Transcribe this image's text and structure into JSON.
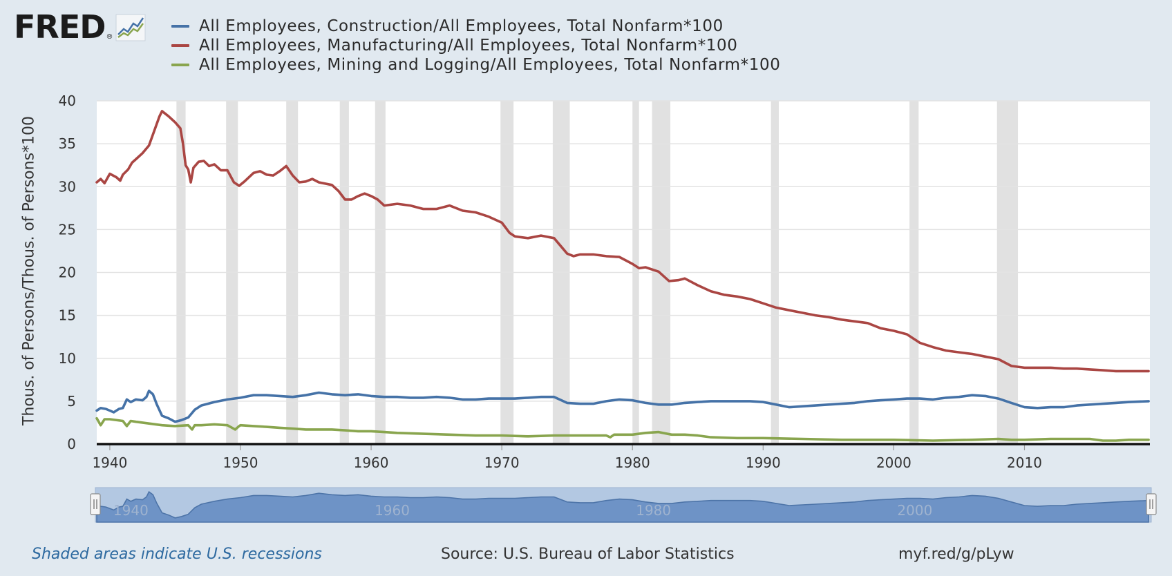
{
  "logo": {
    "text": "FRED",
    "reg": "®",
    "icon": "chart-icon"
  },
  "footer": {
    "note": "Shaded areas indicate U.S. recessions",
    "source": "Source: U.S. Bureau of Labor Statistics",
    "link": "myf.red/g/pLyw"
  },
  "colors": {
    "background": "#e1e9f0",
    "plot_bg": "#ffffff",
    "recession": "#e1e1e1",
    "navigator": "#6e93c6"
  },
  "chart_data": {
    "type": "line",
    "title": "",
    "xlabel": "",
    "ylabel": "Thous. of Persons/Thous. of Persons*100",
    "xlim": [
      1939.0,
      2019.6
    ],
    "ylim": [
      0,
      40
    ],
    "yticks": [
      0,
      5,
      10,
      15,
      20,
      25,
      30,
      35,
      40
    ],
    "xticks": [
      1940,
      1950,
      1960,
      1970,
      1980,
      1990,
      2000,
      2010
    ],
    "grid": true,
    "legend_position": "top",
    "recessions": [
      [
        1945.1,
        1945.8
      ],
      [
        1948.9,
        1949.8
      ],
      [
        1953.5,
        1954.4
      ],
      [
        1957.6,
        1958.3
      ],
      [
        1960.3,
        1961.1
      ],
      [
        1969.9,
        1970.9
      ],
      [
        1973.9,
        1975.2
      ],
      [
        1980.0,
        1980.5
      ],
      [
        1981.5,
        1982.9
      ],
      [
        1990.6,
        1991.2
      ],
      [
        2001.2,
        2001.9
      ],
      [
        2007.9,
        2009.5
      ]
    ],
    "navigator_ticks": [
      1940,
      1960,
      1980,
      2000
    ],
    "series": [
      {
        "name": "All Employees, Construction/All Employees, Total Nonfarm*100",
        "color": "#4572a7",
        "points": [
          [
            1939.0,
            3.9
          ],
          [
            1939.3,
            4.2
          ],
          [
            1939.7,
            4.1
          ],
          [
            1940.0,
            3.9
          ],
          [
            1940.3,
            3.7
          ],
          [
            1940.7,
            4.1
          ],
          [
            1941.0,
            4.2
          ],
          [
            1941.3,
            5.2
          ],
          [
            1941.6,
            4.9
          ],
          [
            1942.0,
            5.2
          ],
          [
            1942.5,
            5.1
          ],
          [
            1942.8,
            5.5
          ],
          [
            1943.0,
            6.2
          ],
          [
            1943.3,
            5.8
          ],
          [
            1943.6,
            4.6
          ],
          [
            1944.0,
            3.3
          ],
          [
            1944.5,
            3.0
          ],
          [
            1945.0,
            2.6
          ],
          [
            1945.5,
            2.8
          ],
          [
            1946.0,
            3.1
          ],
          [
            1946.5,
            4.0
          ],
          [
            1947.0,
            4.5
          ],
          [
            1948.0,
            4.9
          ],
          [
            1949.0,
            5.2
          ],
          [
            1950.0,
            5.4
          ],
          [
            1951.0,
            5.7
          ],
          [
            1952.0,
            5.7
          ],
          [
            1953.0,
            5.6
          ],
          [
            1954.0,
            5.5
          ],
          [
            1955.0,
            5.7
          ],
          [
            1956.0,
            6.0
          ],
          [
            1957.0,
            5.8
          ],
          [
            1958.0,
            5.7
          ],
          [
            1959.0,
            5.8
          ],
          [
            1960.0,
            5.6
          ],
          [
            1961.0,
            5.5
          ],
          [
            1962.0,
            5.5
          ],
          [
            1963.0,
            5.4
          ],
          [
            1964.0,
            5.4
          ],
          [
            1965.0,
            5.5
          ],
          [
            1966.0,
            5.4
          ],
          [
            1967.0,
            5.2
          ],
          [
            1968.0,
            5.2
          ],
          [
            1969.0,
            5.3
          ],
          [
            1970.0,
            5.3
          ],
          [
            1971.0,
            5.3
          ],
          [
            1972.0,
            5.4
          ],
          [
            1973.0,
            5.5
          ],
          [
            1974.0,
            5.5
          ],
          [
            1975.0,
            4.8
          ],
          [
            1976.0,
            4.7
          ],
          [
            1977.0,
            4.7
          ],
          [
            1978.0,
            5.0
          ],
          [
            1979.0,
            5.2
          ],
          [
            1980.0,
            5.1
          ],
          [
            1981.0,
            4.8
          ],
          [
            1982.0,
            4.6
          ],
          [
            1983.0,
            4.6
          ],
          [
            1984.0,
            4.8
          ],
          [
            1985.0,
            4.9
          ],
          [
            1986.0,
            5.0
          ],
          [
            1987.0,
            5.0
          ],
          [
            1988.0,
            5.0
          ],
          [
            1989.0,
            5.0
          ],
          [
            1990.0,
            4.9
          ],
          [
            1991.0,
            4.6
          ],
          [
            1992.0,
            4.3
          ],
          [
            1993.0,
            4.4
          ],
          [
            1994.0,
            4.5
          ],
          [
            1995.0,
            4.6
          ],
          [
            1996.0,
            4.7
          ],
          [
            1997.0,
            4.8
          ],
          [
            1998.0,
            5.0
          ],
          [
            1999.0,
            5.1
          ],
          [
            2000.0,
            5.2
          ],
          [
            2001.0,
            5.3
          ],
          [
            2002.0,
            5.3
          ],
          [
            2003.0,
            5.2
          ],
          [
            2004.0,
            5.4
          ],
          [
            2005.0,
            5.5
          ],
          [
            2006.0,
            5.7
          ],
          [
            2007.0,
            5.6
          ],
          [
            2008.0,
            5.3
          ],
          [
            2009.0,
            4.8
          ],
          [
            2010.0,
            4.3
          ],
          [
            2011.0,
            4.2
          ],
          [
            2012.0,
            4.3
          ],
          [
            2013.0,
            4.3
          ],
          [
            2014.0,
            4.5
          ],
          [
            2015.0,
            4.6
          ],
          [
            2016.0,
            4.7
          ],
          [
            2017.0,
            4.8
          ],
          [
            2018.0,
            4.9
          ],
          [
            2019.5,
            5.0
          ]
        ]
      },
      {
        "name": "All Employees, Manufacturing/All Employees, Total Nonfarm*100",
        "color": "#aa4643",
        "points": [
          [
            1939.0,
            30.5
          ],
          [
            1939.3,
            30.9
          ],
          [
            1939.6,
            30.4
          ],
          [
            1940.0,
            31.5
          ],
          [
            1940.5,
            31.1
          ],
          [
            1940.8,
            30.7
          ],
          [
            1941.0,
            31.4
          ],
          [
            1941.4,
            32.0
          ],
          [
            1941.7,
            32.8
          ],
          [
            1942.0,
            33.2
          ],
          [
            1942.5,
            33.9
          ],
          [
            1943.0,
            34.8
          ],
          [
            1943.4,
            36.5
          ],
          [
            1943.8,
            38.2
          ],
          [
            1944.0,
            38.8
          ],
          [
            1944.5,
            38.2
          ],
          [
            1945.0,
            37.5
          ],
          [
            1945.4,
            36.8
          ],
          [
            1945.6,
            35.0
          ],
          [
            1945.8,
            32.5
          ],
          [
            1946.0,
            32.0
          ],
          [
            1946.2,
            30.5
          ],
          [
            1946.4,
            32.2
          ],
          [
            1946.8,
            32.9
          ],
          [
            1947.2,
            33.0
          ],
          [
            1947.6,
            32.4
          ],
          [
            1948.0,
            32.6
          ],
          [
            1948.5,
            31.9
          ],
          [
            1949.0,
            31.9
          ],
          [
            1949.5,
            30.5
          ],
          [
            1949.9,
            30.1
          ],
          [
            1950.3,
            30.6
          ],
          [
            1951.0,
            31.6
          ],
          [
            1951.5,
            31.8
          ],
          [
            1952.0,
            31.4
          ],
          [
            1952.5,
            31.3
          ],
          [
            1953.0,
            31.8
          ],
          [
            1953.5,
            32.4
          ],
          [
            1954.0,
            31.3
          ],
          [
            1954.5,
            30.5
          ],
          [
            1955.0,
            30.6
          ],
          [
            1955.5,
            30.9
          ],
          [
            1956.0,
            30.5
          ],
          [
            1957.0,
            30.2
          ],
          [
            1957.5,
            29.5
          ],
          [
            1958.0,
            28.5
          ],
          [
            1958.5,
            28.5
          ],
          [
            1959.0,
            28.9
          ],
          [
            1959.5,
            29.2
          ],
          [
            1960.0,
            28.9
          ],
          [
            1960.5,
            28.5
          ],
          [
            1961.0,
            27.8
          ],
          [
            1962.0,
            28.0
          ],
          [
            1963.0,
            27.8
          ],
          [
            1964.0,
            27.4
          ],
          [
            1965.0,
            27.4
          ],
          [
            1966.0,
            27.8
          ],
          [
            1967.0,
            27.2
          ],
          [
            1968.0,
            27.0
          ],
          [
            1969.0,
            26.5
          ],
          [
            1970.0,
            25.8
          ],
          [
            1970.6,
            24.6
          ],
          [
            1971.0,
            24.2
          ],
          [
            1972.0,
            24.0
          ],
          [
            1973.0,
            24.3
          ],
          [
            1974.0,
            24.0
          ],
          [
            1975.0,
            22.2
          ],
          [
            1975.5,
            21.9
          ],
          [
            1976.0,
            22.1
          ],
          [
            1977.0,
            22.1
          ],
          [
            1978.0,
            21.9
          ],
          [
            1979.0,
            21.8
          ],
          [
            1980.0,
            21.0
          ],
          [
            1980.5,
            20.5
          ],
          [
            1981.0,
            20.6
          ],
          [
            1982.0,
            20.1
          ],
          [
            1982.8,
            19.0
          ],
          [
            1983.5,
            19.1
          ],
          [
            1984.0,
            19.3
          ],
          [
            1985.0,
            18.5
          ],
          [
            1986.0,
            17.8
          ],
          [
            1987.0,
            17.4
          ],
          [
            1988.0,
            17.2
          ],
          [
            1989.0,
            16.9
          ],
          [
            1990.0,
            16.4
          ],
          [
            1991.0,
            15.9
          ],
          [
            1992.0,
            15.6
          ],
          [
            1993.0,
            15.3
          ],
          [
            1994.0,
            15.0
          ],
          [
            1995.0,
            14.8
          ],
          [
            1996.0,
            14.5
          ],
          [
            1997.0,
            14.3
          ],
          [
            1998.0,
            14.1
          ],
          [
            1999.0,
            13.5
          ],
          [
            2000.0,
            13.2
          ],
          [
            2001.0,
            12.8
          ],
          [
            2002.0,
            11.8
          ],
          [
            2003.0,
            11.3
          ],
          [
            2004.0,
            10.9
          ],
          [
            2005.0,
            10.7
          ],
          [
            2006.0,
            10.5
          ],
          [
            2007.0,
            10.2
          ],
          [
            2008.0,
            9.9
          ],
          [
            2009.0,
            9.1
          ],
          [
            2010.0,
            8.9
          ],
          [
            2011.0,
            8.9
          ],
          [
            2012.0,
            8.9
          ],
          [
            2013.0,
            8.8
          ],
          [
            2014.0,
            8.8
          ],
          [
            2015.0,
            8.7
          ],
          [
            2016.0,
            8.6
          ],
          [
            2017.0,
            8.5
          ],
          [
            2018.0,
            8.5
          ],
          [
            2019.5,
            8.5
          ]
        ]
      },
      {
        "name": "All Employees, Mining and Logging/All Employees, Total Nonfarm*100",
        "color": "#89a54e",
        "points": [
          [
            1939.0,
            3.0
          ],
          [
            1939.3,
            2.2
          ],
          [
            1939.6,
            2.9
          ],
          [
            1940.0,
            2.9
          ],
          [
            1941.0,
            2.7
          ],
          [
            1941.3,
            2.1
          ],
          [
            1941.6,
            2.7
          ],
          [
            1942.0,
            2.6
          ],
          [
            1943.0,
            2.4
          ],
          [
            1944.0,
            2.2
          ],
          [
            1945.0,
            2.1
          ],
          [
            1946.0,
            2.2
          ],
          [
            1946.3,
            1.7
          ],
          [
            1946.5,
            2.2
          ],
          [
            1947.0,
            2.2
          ],
          [
            1948.0,
            2.3
          ],
          [
            1949.0,
            2.2
          ],
          [
            1949.6,
            1.7
          ],
          [
            1949.9,
            2.1
          ],
          [
            1950.0,
            2.2
          ],
          [
            1951.0,
            2.1
          ],
          [
            1952.0,
            2.0
          ],
          [
            1953.0,
            1.9
          ],
          [
            1954.0,
            1.8
          ],
          [
            1955.0,
            1.7
          ],
          [
            1956.0,
            1.7
          ],
          [
            1957.0,
            1.7
          ],
          [
            1958.0,
            1.6
          ],
          [
            1959.0,
            1.5
          ],
          [
            1960.0,
            1.5
          ],
          [
            1961.0,
            1.4
          ],
          [
            1962.0,
            1.3
          ],
          [
            1964.0,
            1.2
          ],
          [
            1966.0,
            1.1
          ],
          [
            1968.0,
            1.0
          ],
          [
            1970.0,
            1.0
          ],
          [
            1972.0,
            0.9
          ],
          [
            1974.0,
            1.0
          ],
          [
            1976.0,
            1.0
          ],
          [
            1978.0,
            1.0
          ],
          [
            1978.3,
            0.8
          ],
          [
            1978.6,
            1.1
          ],
          [
            1980.0,
            1.1
          ],
          [
            1981.0,
            1.3
          ],
          [
            1982.0,
            1.4
          ],
          [
            1983.0,
            1.1
          ],
          [
            1984.0,
            1.1
          ],
          [
            1985.0,
            1.0
          ],
          [
            1986.0,
            0.8
          ],
          [
            1988.0,
            0.7
          ],
          [
            1990.0,
            0.7
          ],
          [
            1993.0,
            0.6
          ],
          [
            1996.0,
            0.5
          ],
          [
            2000.0,
            0.5
          ],
          [
            2003.0,
            0.4
          ],
          [
            2006.0,
            0.5
          ],
          [
            2008.0,
            0.6
          ],
          [
            2009.0,
            0.5
          ],
          [
            2010.0,
            0.5
          ],
          [
            2012.0,
            0.6
          ],
          [
            2014.0,
            0.6
          ],
          [
            2015.0,
            0.6
          ],
          [
            2016.0,
            0.4
          ],
          [
            2017.0,
            0.4
          ],
          [
            2018.0,
            0.5
          ],
          [
            2019.5,
            0.5
          ]
        ]
      }
    ]
  }
}
